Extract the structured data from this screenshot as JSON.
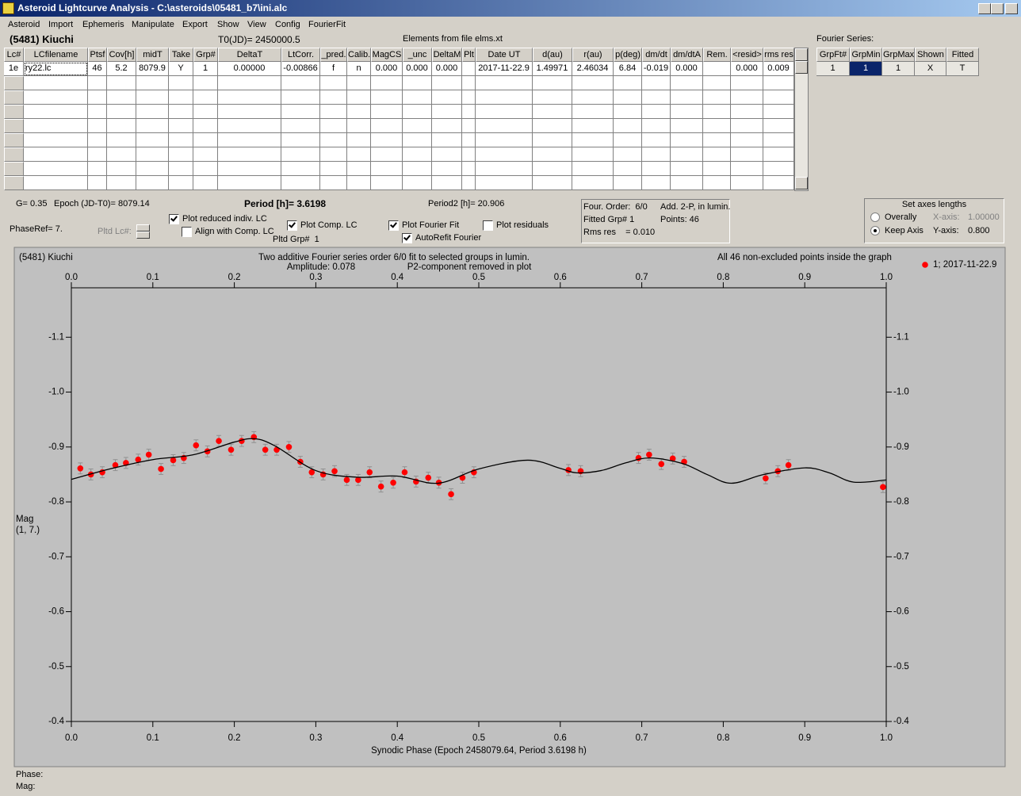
{
  "window": {
    "title": "Asteroid Lightcurve Analysis - C:\\asteroids\\05481_b7\\ini.alc"
  },
  "menu": [
    "Asteroid",
    "Import",
    "Ephemeris",
    "Manipulate",
    "Export",
    "Show",
    "View",
    "Config",
    "FourierFit"
  ],
  "header": {
    "asteroid": "(5481) Kiuchi",
    "t0": "T0(JD)= 2450000.5",
    "elements": "Elements from file elms.xt",
    "fourier_label": "Fourier Series:"
  },
  "lc_table": {
    "columns": [
      "Lc#",
      "LCfilename",
      "Ptsf",
      "Cov[h]",
      "midT",
      "Take",
      "Grp#",
      "DeltaT",
      "LtCorr.",
      "_pred.",
      "Calib.",
      "MagCS",
      "_unc",
      "DeltaM",
      "Plt",
      "Date UT",
      "d(au)",
      "r(au)",
      "p(deg)",
      "dm/dt",
      "dm/dtA",
      "Rem.",
      "<resid>",
      "rms res"
    ],
    "rows": [
      [
        "1e",
        "ry22.lc",
        "46",
        "5.2",
        "8079.9",
        "Y",
        "1",
        "0.00000",
        "-0.00866",
        "f",
        "n",
        "0.000",
        "0.000",
        "0.000",
        null,
        "2017-11-22.9",
        "1.49971",
        "2.46034",
        "6.84",
        "-0.019",
        "0.000",
        null,
        "0.000",
        "0.009"
      ]
    ]
  },
  "fourier_table": {
    "columns": [
      "GrpFt#",
      "GrpMin",
      "GrpMax",
      "Shown",
      "Fitted"
    ],
    "rows": [
      [
        "1",
        "1",
        "1",
        "X",
        "T"
      ]
    ]
  },
  "info": {
    "g": "G= 0.35",
    "epoch": "Epoch (JD-T0)= 8079.14",
    "period": "Period [h]= 3.6198",
    "period2": "Period2 [h]= 20.906",
    "phase_ref": "PhaseRef= 7.",
    "pltd_lc": "Pltd Lc#:",
    "pltd_grp": "Pltd Grp#  1"
  },
  "checkboxes": [
    {
      "label": "Plot reduced indiv. LC",
      "checked": true
    },
    {
      "label": "Align with Comp. LC",
      "checked": false
    },
    {
      "label": "Plot Comp. LC",
      "checked": true
    },
    {
      "label": "Plot Fourier Fit",
      "checked": true
    },
    {
      "label": "AutoRefit Fourier",
      "checked": true
    },
    {
      "label": "Plot residuals",
      "checked": false
    }
  ],
  "fit_box": [
    "Four. Order:  6/0",
    "Add. 2-P, in lumin.",
    "Fitted Grp# 1",
    "Points: 46",
    "Rms res    = 0.010"
  ],
  "axes_box": {
    "title": "Set axes lengths",
    "options": [
      {
        "label": "Overally",
        "selected": false,
        "axis": "X-axis:",
        "value": "1.00000"
      },
      {
        "label": "Keep Axis",
        "selected": true,
        "axis": "Y-axis:",
        "value": "0.800"
      }
    ]
  },
  "status": [
    "Phase:",
    "Mag:"
  ],
  "chart_data": {
    "type": "scatter",
    "title": "Two additive Fourier series order 6/0 fit to selected groups in lumin.",
    "annotations": [
      "(5481) Kiuchi",
      "Amplitude: 0.078",
      "P2-component removed in plot",
      "All 46 non-excluded points inside the graph"
    ],
    "x_label": "Synodic Phase (Epoch 2458079.64, Period 3.6198 h)",
    "y_label": [
      "Mag",
      "(1, 7.)"
    ],
    "xlim": [
      0,
      1
    ],
    "ylim": [
      -1.19,
      -0.4
    ],
    "y_inverted": true,
    "xticks": [
      {
        "value": 0,
        "label": "0.0"
      },
      0.1,
      0.2,
      0.3,
      0.4,
      0.5,
      0.6,
      0.7,
      0.8,
      0.9,
      {
        "value": 1,
        "label": "1.0"
      }
    ],
    "yticks": [
      -1.1,
      {
        "value": -1,
        "label": "-1.0"
      },
      -0.9,
      -0.8,
      -0.7,
      -0.6,
      -0.5,
      -0.4
    ],
    "series": [
      {
        "name": "1; 2017-11-22.9",
        "type": "scatter",
        "color": "#ff0000",
        "error": 0.01,
        "x": [
          0.011,
          0.024,
          0.038,
          0.054,
          0.067,
          0.082,
          0.095,
          0.11,
          0.125,
          0.138,
          0.153,
          0.167,
          0.181,
          0.196,
          0.209,
          0.224,
          0.238,
          0.252,
          0.267,
          0.281,
          0.295,
          0.309,
          0.323,
          0.338,
          0.352,
          0.366,
          0.38,
          0.395,
          0.409,
          0.423,
          0.438,
          0.451,
          0.466,
          0.48,
          0.494,
          0.61,
          0.625,
          0.696,
          0.709,
          0.724,
          0.738,
          0.752,
          0.852,
          0.867,
          0.88,
          0.996
        ],
        "y": [
          -0.861,
          -0.85,
          -0.854,
          -0.867,
          -0.871,
          -0.877,
          -0.886,
          -0.86,
          -0.876,
          -0.88,
          -0.903,
          -0.892,
          -0.911,
          -0.895,
          -0.911,
          -0.918,
          -0.895,
          -0.895,
          -0.9,
          -0.873,
          -0.854,
          -0.85,
          -0.856,
          -0.84,
          -0.84,
          -0.854,
          -0.828,
          -0.835,
          -0.854,
          -0.837,
          -0.844,
          -0.835,
          -0.814,
          -0.844,
          -0.854,
          -0.858,
          -0.856,
          -0.88,
          -0.886,
          -0.869,
          -0.879,
          -0.873,
          -0.843,
          -0.856,
          -0.867,
          -0.827
        ]
      },
      {
        "type": "line",
        "color": "#000000",
        "x": [
          0,
          0.05,
          0.1,
          0.15,
          0.2,
          0.225,
          0.25,
          0.3,
          0.35,
          0.4,
          0.45,
          0.5,
          0.56,
          0.6,
          0.62,
          0.65,
          0.68,
          0.71,
          0.75,
          0.78,
          0.81,
          0.85,
          0.9,
          0.93,
          0.96,
          1
        ],
        "y": [
          -0.841,
          -0.861,
          -0.877,
          -0.886,
          -0.909,
          -0.915,
          -0.902,
          -0.857,
          -0.845,
          -0.847,
          -0.834,
          -0.86,
          -0.876,
          -0.861,
          -0.853,
          -0.857,
          -0.871,
          -0.88,
          -0.87,
          -0.85,
          -0.834,
          -0.85,
          -0.862,
          -0.853,
          -0.836,
          -0.84
        ]
      }
    ]
  }
}
